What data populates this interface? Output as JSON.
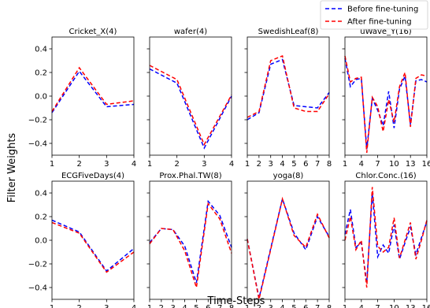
{
  "figure": {
    "ylabel": "Filter Weights",
    "xlabel": "Time-Steps",
    "legend": {
      "placement": "top-right",
      "entries": [
        {
          "name": "Before fine-tuning",
          "color": "#0000ff",
          "style": "dashed"
        },
        {
          "name": "After fine-tuning",
          "color": "#ff0000",
          "style": "dashed"
        }
      ]
    },
    "shared_y_ticks": [
      "0.4",
      "0.2",
      "0.0",
      "−0.2",
      "−0.4"
    ]
  },
  "chart_data": [
    {
      "type": "line",
      "title": "Cricket_X(4)",
      "x": [
        1,
        2,
        3,
        4
      ],
      "xticks": [
        "1",
        "2",
        "3",
        "4"
      ],
      "ylim": [
        -0.5,
        0.5
      ],
      "yticks": [
        0.4,
        0.2,
        0.0,
        -0.2,
        -0.4
      ],
      "series": [
        {
          "name": "Before fine-tuning",
          "values": [
            -0.14,
            0.21,
            -0.09,
            -0.07
          ]
        },
        {
          "name": "After fine-tuning",
          "values": [
            -0.13,
            0.24,
            -0.07,
            -0.04
          ]
        }
      ]
    },
    {
      "type": "line",
      "title": "wafer(4)",
      "x": [
        1,
        2,
        3,
        4
      ],
      "xticks": [
        "1",
        "2",
        "3",
        "4"
      ],
      "ylim": [
        -0.5,
        0.5
      ],
      "yticks": [
        0.4,
        0.2,
        0.0,
        -0.2,
        -0.4
      ],
      "series": [
        {
          "name": "Before fine-tuning",
          "values": [
            0.23,
            0.11,
            -0.44,
            0.0
          ]
        },
        {
          "name": "After fine-tuning",
          "values": [
            0.26,
            0.14,
            -0.41,
            0.01
          ]
        }
      ]
    },
    {
      "type": "line",
      "title": "SwedishLeaf(8)",
      "x": [
        1,
        2,
        3,
        4,
        5,
        6,
        7,
        8
      ],
      "xticks": [
        "1",
        "2",
        "3",
        "4",
        "5",
        "6",
        "7",
        "8"
      ],
      "ylim": [
        -0.5,
        0.5
      ],
      "yticks": [
        0.4,
        0.2,
        0.0,
        -0.2,
        -0.4
      ],
      "series": [
        {
          "name": "Before fine-tuning",
          "values": [
            -0.2,
            -0.14,
            0.27,
            0.31,
            -0.08,
            -0.09,
            -0.1,
            0.03
          ]
        },
        {
          "name": "After fine-tuning",
          "values": [
            -0.18,
            -0.13,
            0.3,
            0.34,
            -0.1,
            -0.13,
            -0.13,
            0.02
          ]
        }
      ]
    },
    {
      "type": "line",
      "title": "uWave_Y(16)",
      "x": [
        1,
        2,
        3,
        4,
        5,
        6,
        7,
        8,
        9,
        10,
        11,
        12,
        13,
        14,
        15,
        16
      ],
      "xticks": [
        "1",
        "4",
        "7",
        "10",
        "13",
        "16"
      ],
      "ylim": [
        -0.5,
        0.5
      ],
      "yticks": [
        0.4,
        0.2,
        0.0,
        -0.2,
        -0.4
      ],
      "series": [
        {
          "name": "Before fine-tuning",
          "values": [
            0.32,
            0.08,
            0.14,
            0.15,
            -0.45,
            -0.02,
            -0.12,
            -0.25,
            0.04,
            -0.27,
            0.06,
            0.17,
            -0.24,
            0.13,
            0.14,
            0.12
          ]
        },
        {
          "name": "After fine-tuning",
          "values": [
            0.34,
            0.12,
            0.15,
            0.16,
            -0.48,
            -0.01,
            -0.09,
            -0.3,
            -0.03,
            -0.22,
            0.08,
            0.2,
            -0.26,
            0.15,
            0.18,
            0.17
          ]
        }
      ]
    },
    {
      "type": "line",
      "title": "ECGFiveDays(4)",
      "x": [
        1,
        2,
        3,
        4
      ],
      "xticks": [
        "1",
        "2",
        "3",
        "4"
      ],
      "ylim": [
        -0.5,
        0.5
      ],
      "yticks": [
        0.4,
        0.2,
        0.0,
        -0.2,
        -0.4
      ],
      "series": [
        {
          "name": "Before fine-tuning",
          "values": [
            0.17,
            0.07,
            -0.26,
            -0.07
          ]
        },
        {
          "name": "After fine-tuning",
          "values": [
            0.15,
            0.06,
            -0.27,
            -0.1
          ]
        }
      ]
    },
    {
      "type": "line",
      "title": "Prox.Phal.TW(8)",
      "x": [
        1,
        2,
        3,
        4,
        5,
        6,
        7,
        8
      ],
      "xticks": [
        "1",
        "2",
        "3",
        "4",
        "5",
        "6",
        "7",
        "8"
      ],
      "ylim": [
        -0.5,
        0.5
      ],
      "yticks": [
        0.4,
        0.2,
        0.0,
        -0.2,
        -0.4
      ],
      "series": [
        {
          "name": "Before fine-tuning",
          "values": [
            -0.02,
            0.1,
            0.09,
            -0.05,
            -0.36,
            0.33,
            0.21,
            -0.06
          ]
        },
        {
          "name": "After fine-tuning",
          "values": [
            -0.03,
            0.1,
            0.09,
            -0.09,
            -0.4,
            0.31,
            0.18,
            -0.11
          ]
        }
      ]
    },
    {
      "type": "line",
      "title": "yoga(8)",
      "x": [
        1,
        2,
        3,
        4,
        5,
        6,
        7,
        8
      ],
      "xticks": [
        "1",
        "2",
        "3",
        "4",
        "5",
        "6",
        "7",
        "8"
      ],
      "ylim": [
        -0.5,
        0.5
      ],
      "yticks": [
        0.4,
        0.2,
        0.0,
        -0.2,
        -0.4
      ],
      "series": [
        {
          "name": "Before fine-tuning",
          "values": [
            0.01,
            -0.49,
            -0.07,
            0.35,
            0.06,
            -0.08,
            0.2,
            0.03
          ]
        },
        {
          "name": "After fine-tuning",
          "values": [
            0.01,
            -0.5,
            -0.08,
            0.35,
            0.04,
            -0.06,
            0.22,
            0.02
          ]
        }
      ]
    },
    {
      "type": "line",
      "title": "Chlor.Conc.(16)",
      "x": [
        1,
        2,
        3,
        4,
        5,
        6,
        7,
        8,
        9,
        10,
        11,
        12,
        13,
        14,
        15,
        16
      ],
      "xticks": [
        "1",
        "4",
        "7",
        "10",
        "13",
        "16"
      ],
      "ylim": [
        -0.5,
        0.5
      ],
      "yticks": [
        0.4,
        0.2,
        0.0,
        -0.2,
        -0.4
      ],
      "series": [
        {
          "name": "Before fine-tuning",
          "values": [
            0.05,
            0.26,
            -0.06,
            -0.02,
            -0.36,
            0.4,
            -0.14,
            -0.04,
            -0.11,
            0.13,
            -0.16,
            -0.02,
            0.11,
            -0.12,
            0.02,
            0.16
          ]
        },
        {
          "name": "After fine-tuning",
          "values": [
            0.0,
            0.2,
            -0.08,
            0.0,
            -0.4,
            0.45,
            -0.05,
            -0.1,
            -0.06,
            0.19,
            -0.15,
            0.0,
            0.15,
            -0.16,
            0.0,
            0.17
          ]
        }
      ]
    }
  ]
}
